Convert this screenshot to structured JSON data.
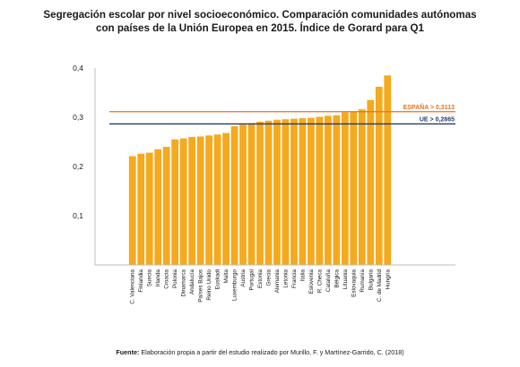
{
  "title": {
    "line1": "Segregación escolar por nivel socioeconómico. Comparación comunidades autónomas",
    "line2": "con países de la Unión Europea en 2015. Índice de Gorard para Q1"
  },
  "source": {
    "label": "Fuente:",
    "text": "Elaboración propia a partir del estudio realizado por Murillo, F. y Martínez-Garrido, C. (2018)"
  },
  "colors": {
    "bar": "#f5a91d",
    "spain_line": "#e8731e",
    "eu_line": "#243a6e",
    "axis": "#bdbdbd",
    "text": "#1a1a1a"
  },
  "chart_data": {
    "type": "bar",
    "categories": [
      "C. Valenciana",
      "Finlandia",
      "Suecia",
      "Irlanda",
      "Croacia",
      "Polonia",
      "Dinamarca",
      "Andalucía",
      "Países Bajos",
      "Reino Unido",
      "Euskadi",
      "Malta",
      "Luxemburgo",
      "Austria",
      "Portugal",
      "Estonia",
      "Grecia",
      "Alemania",
      "Letonia",
      "Francia",
      "Italia",
      "Eslovenia",
      "R. Checa",
      "Cataluña",
      "Bélgica",
      "Lituania",
      "Eslovaquia",
      "Rumanía",
      "Bulgaria",
      "C. de Madrid",
      "Hungría"
    ],
    "values": [
      0.221,
      0.226,
      0.228,
      0.235,
      0.24,
      0.255,
      0.257,
      0.26,
      0.261,
      0.263,
      0.265,
      0.268,
      0.282,
      0.285,
      0.288,
      0.291,
      0.293,
      0.295,
      0.296,
      0.297,
      0.298,
      0.299,
      0.301,
      0.303,
      0.304,
      0.31,
      0.312,
      0.316,
      0.335,
      0.362,
      0.385
    ],
    "yticks": [
      "0,1",
      "0,2",
      "0,3",
      "0,4"
    ],
    "ylim": [
      0,
      0.4
    ],
    "grid": false,
    "reference_lines": [
      {
        "label": "ESPAÑA > 0,3113",
        "value": 0.3113
      },
      {
        "label": "UE > 0,2865",
        "value": 0.2865
      }
    ]
  }
}
